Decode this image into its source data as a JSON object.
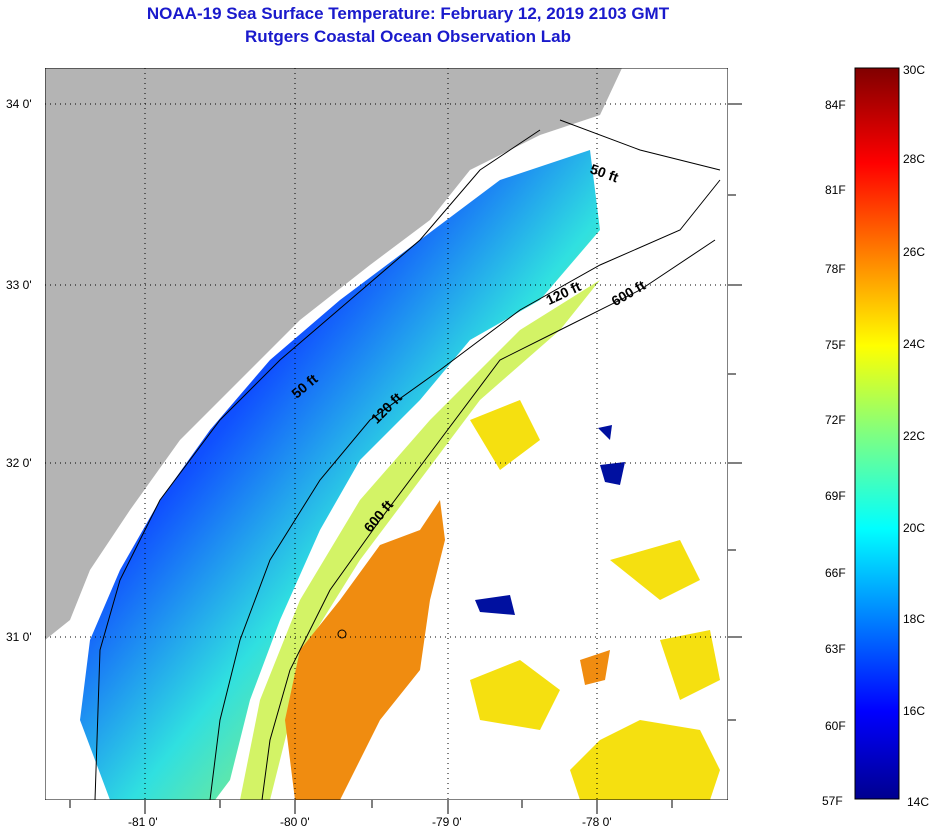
{
  "header": {
    "title": "NOAA-19 Sea Surface Temperature:  February 12, 2019 2103 GMT",
    "subtitle": "Rutgers Coastal Ocean Observation Lab"
  },
  "map": {
    "lon_ticks": [
      "-81 0'",
      "-80 0'",
      "-79 0'",
      "-78 0'"
    ],
    "lat_ticks": [
      "34 0'",
      "33 0'",
      "32 0'",
      "31 0'"
    ],
    "contours": [
      {
        "label": "50 ft"
      },
      {
        "label": "50 ft"
      },
      {
        "label": "120 ft"
      },
      {
        "label": "120 ft"
      },
      {
        "label": "600 ft"
      },
      {
        "label": "600 ft"
      }
    ],
    "colors": {
      "land": "#b4b4b4",
      "no_data": "#ffffff"
    }
  },
  "colorbar": {
    "fahrenheit": [
      "84F",
      "81F",
      "78F",
      "75F",
      "72F",
      "69F",
      "66F",
      "63F",
      "60F",
      "57F"
    ],
    "celsius": [
      "30C",
      "28C",
      "26C",
      "24C",
      "22C",
      "20C",
      "18C",
      "16C",
      "14C"
    ],
    "range_c": [
      14,
      30
    ]
  }
}
